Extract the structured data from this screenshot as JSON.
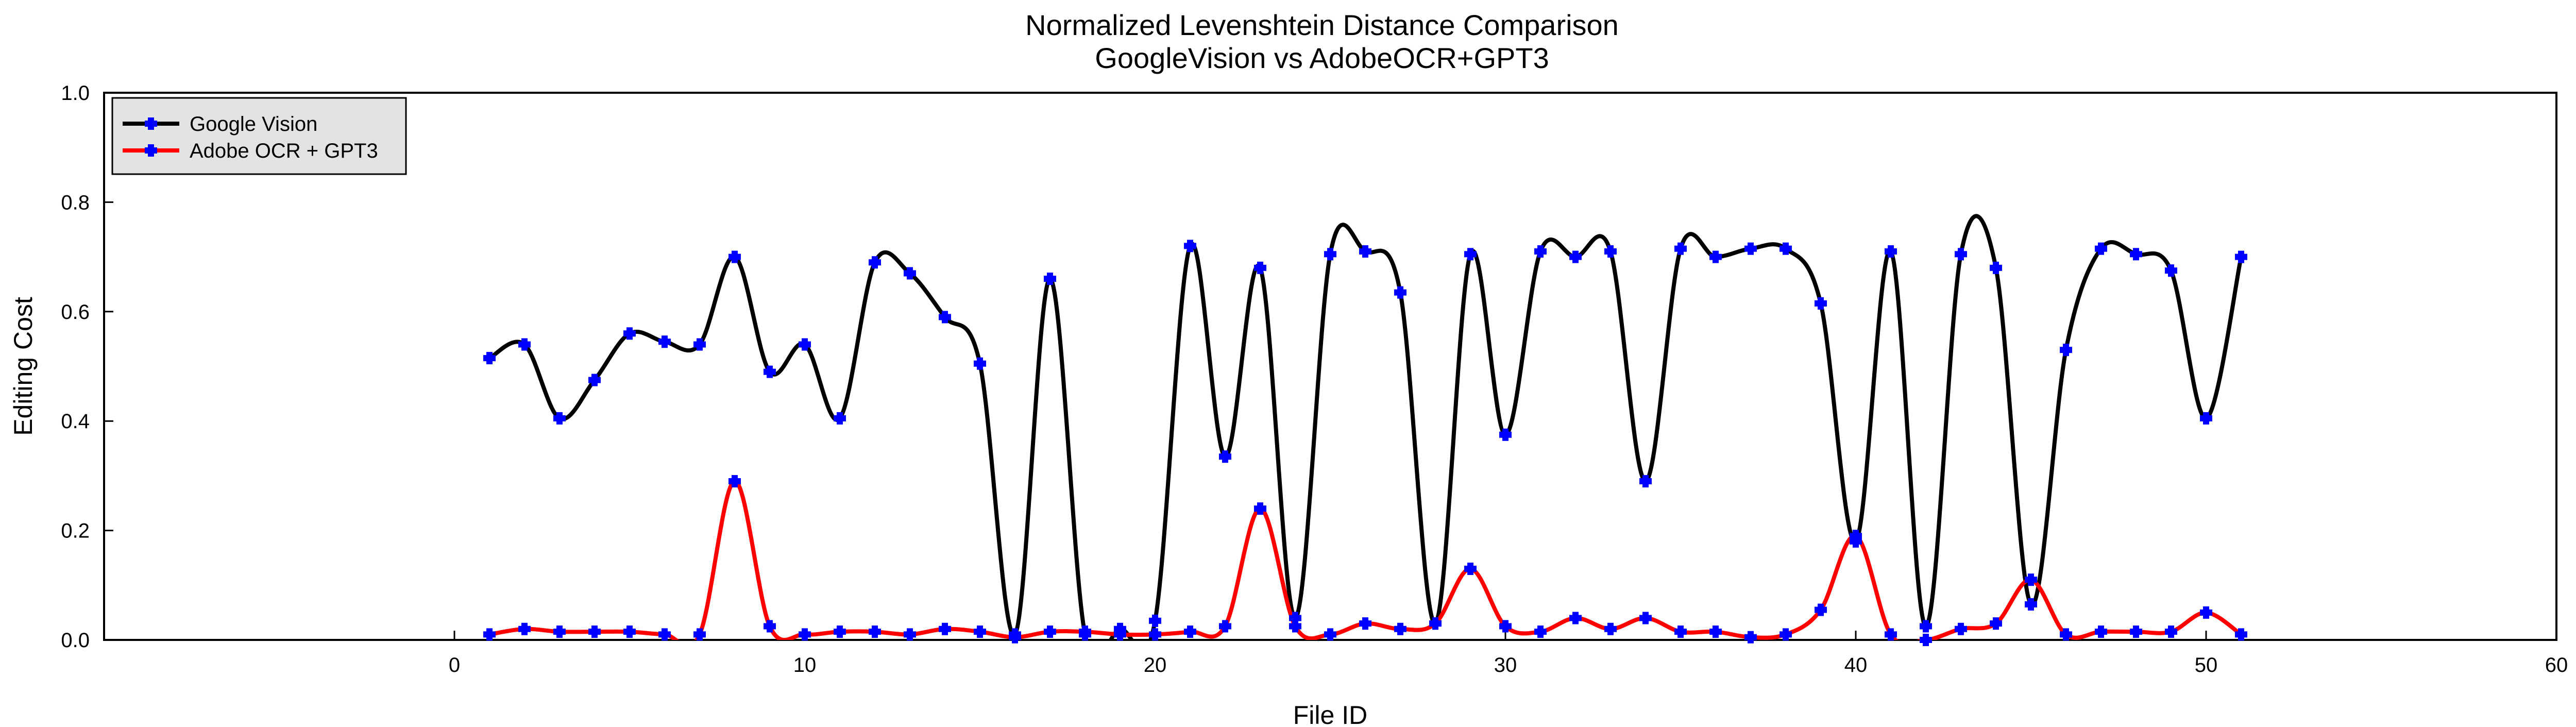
{
  "chart_data": {
    "type": "line",
    "title": [
      "Normalized Levenshtein Distance Comparison",
      "GoogleVision vs AdobeOCR+GPT3"
    ],
    "xlabel": "File ID",
    "ylabel": "Editing Cost",
    "xlim": [
      -10,
      60
    ],
    "ylim": [
      0,
      1
    ],
    "xticks": [
      0,
      10,
      20,
      30,
      40,
      50,
      60
    ],
    "yticks": [
      0.0,
      0.2,
      0.4,
      0.6,
      0.8,
      1.0
    ],
    "xtick_labels": [
      "0",
      "10",
      "20",
      "30",
      "40",
      "50",
      "60"
    ],
    "ytick_labels": [
      "0.0",
      "0.2",
      "0.4",
      "0.6",
      "0.8",
      "1.0"
    ],
    "grid": false,
    "legend_position": "top-left",
    "marker_color": "#0000ff",
    "series": [
      {
        "name": "Google Vision",
        "color": "#000000",
        "x": [
          1,
          2,
          3,
          4,
          5,
          6,
          7,
          8,
          9,
          10,
          11,
          12,
          13,
          14,
          15,
          16,
          17,
          18,
          19,
          20,
          21,
          22,
          23,
          24,
          25,
          26,
          27,
          28,
          29,
          30,
          31,
          32,
          33,
          34,
          35,
          36,
          37,
          38,
          39,
          40,
          41,
          42,
          43,
          44,
          45,
          46,
          47,
          48,
          49,
          50,
          51
        ],
        "values": [
          0.515,
          0.54,
          0.405,
          0.475,
          0.56,
          0.545,
          0.54,
          0.7,
          0.49,
          0.54,
          0.405,
          0.69,
          0.67,
          0.59,
          0.505,
          0.01,
          0.66,
          0.01,
          0.02,
          0.035,
          0.72,
          0.335,
          0.68,
          0.04,
          0.705,
          0.71,
          0.635,
          0.03,
          0.705,
          0.375,
          0.71,
          0.7,
          0.71,
          0.29,
          0.715,
          0.7,
          0.715,
          0.715,
          0.615,
          0.18,
          0.71,
          0.025,
          0.705,
          0.68,
          0.065,
          0.53,
          0.715,
          0.705,
          0.675,
          0.405,
          0.7
        ]
      },
      {
        "name": "Adobe OCR + GPT3",
        "color": "#ff0000",
        "x": [
          1,
          2,
          3,
          4,
          5,
          6,
          7,
          8,
          9,
          10,
          11,
          12,
          13,
          14,
          15,
          16,
          17,
          18,
          19,
          20,
          21,
          22,
          23,
          24,
          25,
          26,
          27,
          28,
          29,
          30,
          31,
          32,
          33,
          34,
          35,
          36,
          37,
          38,
          39,
          40,
          41,
          42,
          43,
          44,
          45,
          46,
          47,
          48,
          49,
          50,
          51
        ],
        "values": [
          0.01,
          0.02,
          0.015,
          0.015,
          0.015,
          0.01,
          0.01,
          0.29,
          0.025,
          0.01,
          0.015,
          0.015,
          0.01,
          0.02,
          0.015,
          0.005,
          0.015,
          0.015,
          0.01,
          0.01,
          0.015,
          0.025,
          0.24,
          0.025,
          0.01,
          0.03,
          0.02,
          0.03,
          0.13,
          0.025,
          0.015,
          0.04,
          0.02,
          0.04,
          0.015,
          0.015,
          0.005,
          0.01,
          0.055,
          0.19,
          0.01,
          0.0,
          0.02,
          0.03,
          0.11,
          0.01,
          0.015,
          0.015,
          0.015,
          0.05,
          0.01
        ]
      }
    ]
  }
}
